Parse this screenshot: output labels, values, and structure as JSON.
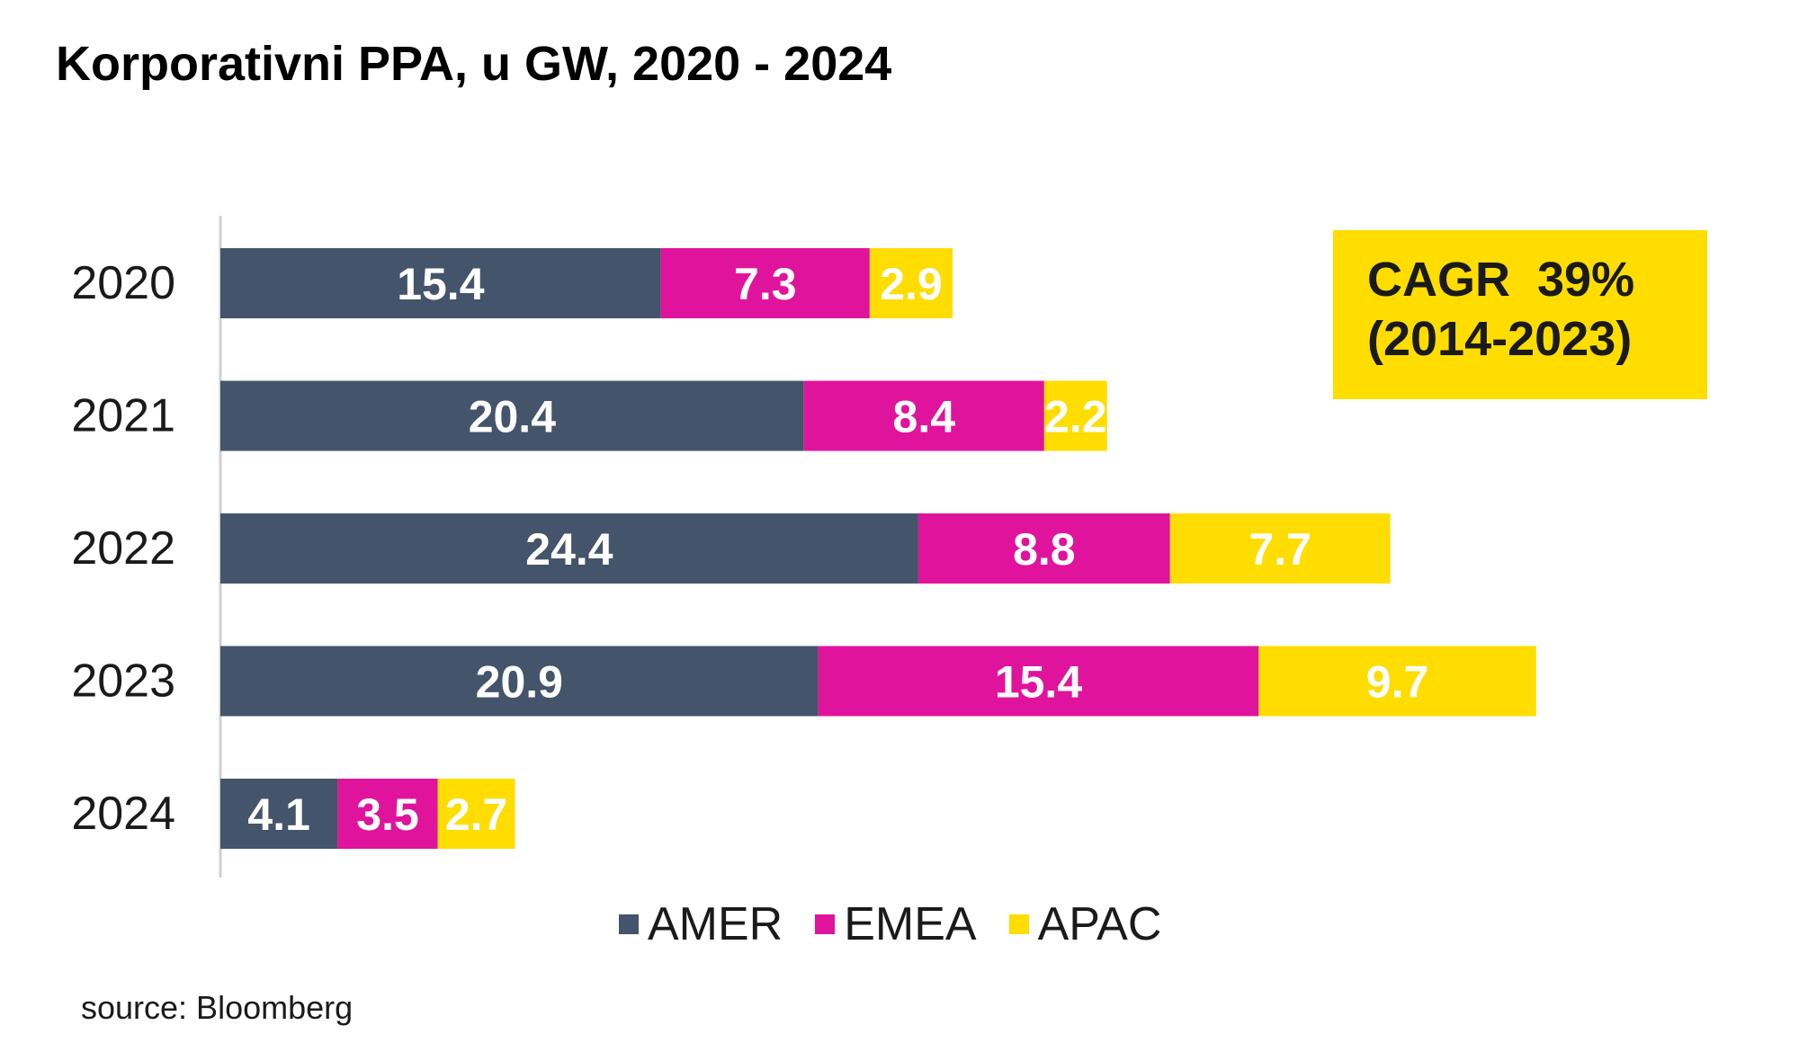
{
  "chart_data": {
    "type": "bar",
    "orientation": "horizontal",
    "stacked": true,
    "title": "Korporativni PPA, u GW, 2020 - 2024",
    "categories": [
      "2020",
      "2021",
      "2022",
      "2023",
      "2024"
    ],
    "series": [
      {
        "name": "AMER",
        "values": [
          15.4,
          20.4,
          24.4,
          20.9,
          4.1
        ],
        "labels": [
          "15.4",
          "20.4",
          "24.4",
          "20.9",
          "4.1"
        ]
      },
      {
        "name": "EMEA",
        "values": [
          7.3,
          8.4,
          8.8,
          15.4,
          3.5
        ],
        "labels": [
          "7.3",
          "8.4",
          "8.8",
          "15.4",
          "3.5"
        ]
      },
      {
        "name": "APAC",
        "values": [
          2.9,
          2.2,
          7.7,
          9.7,
          2.7
        ],
        "labels": [
          "2.9",
          "2.2",
          "7.7",
          "9.7",
          "2.7"
        ]
      }
    ],
    "xlim": [
      0,
      50
    ],
    "grid": false,
    "legend_position": "bottom"
  },
  "annotation": {
    "line1": "CAGR  39%",
    "line2": "(2014-2023)"
  },
  "source": "source: Bloomberg",
  "colors": {
    "AMER": "#44546a",
    "EMEA": "#e0149c",
    "APAC": "#ffdd00",
    "annotation_bg": "#ffdd00",
    "axis": "#d0d0d0",
    "label_light": "#ffffff"
  }
}
